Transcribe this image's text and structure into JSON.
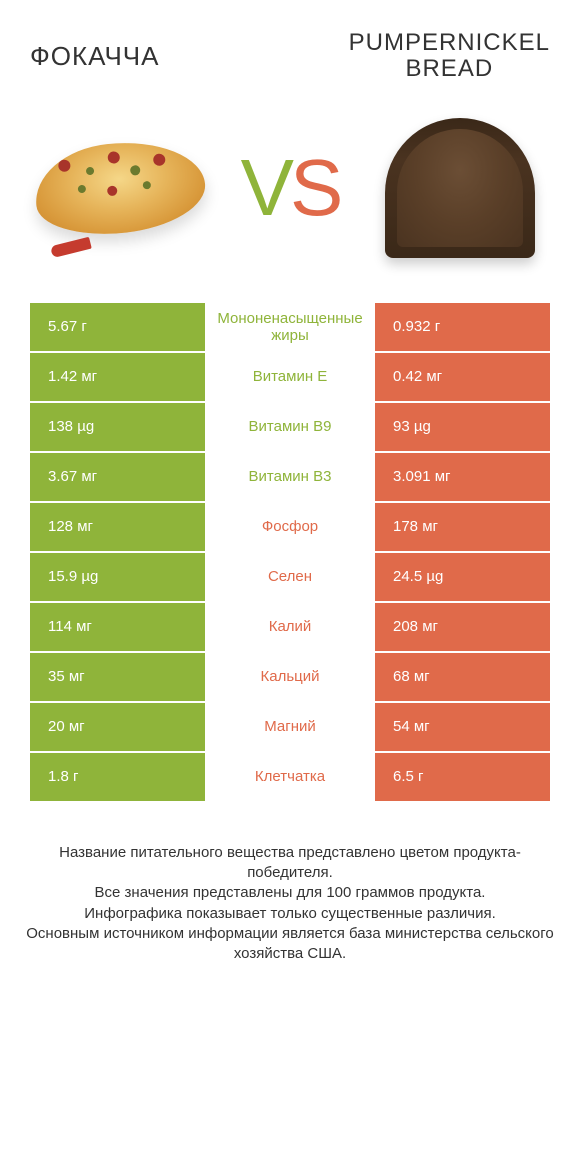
{
  "colors": {
    "green": "#8fb43a",
    "orange": "#e06a4a",
    "text": "#333333",
    "white": "#ffffff"
  },
  "header": {
    "left_title": "ФОКАЧЧА",
    "right_title_line1": "PUMPERNICKEL",
    "right_title_line2": "BREAD"
  },
  "vs": {
    "v": "V",
    "s": "S"
  },
  "table": {
    "left_color": "#8fb43a",
    "right_color": "#e06a4a",
    "rows": [
      {
        "left": "5.67 г",
        "mid": "Мононенасыщенные жиры",
        "right": "0.932 г",
        "winner": "left"
      },
      {
        "left": "1.42 мг",
        "mid": "Витамин E",
        "right": "0.42 мг",
        "winner": "left"
      },
      {
        "left": "138 µg",
        "mid": "Витамин B9",
        "right": "93 µg",
        "winner": "left"
      },
      {
        "left": "3.67 мг",
        "mid": "Витамин B3",
        "right": "3.091 мг",
        "winner": "left"
      },
      {
        "left": "128 мг",
        "mid": "Фосфор",
        "right": "178 мг",
        "winner": "right"
      },
      {
        "left": "15.9 µg",
        "mid": "Селен",
        "right": "24.5 µg",
        "winner": "right"
      },
      {
        "left": "114 мг",
        "mid": "Калий",
        "right": "208 мг",
        "winner": "right"
      },
      {
        "left": "35 мг",
        "mid": "Кальций",
        "right": "68 мг",
        "winner": "right"
      },
      {
        "left": "20 мг",
        "mid": "Магний",
        "right": "54 мг",
        "winner": "right"
      },
      {
        "left": "1.8 г",
        "mid": "Клетчатка",
        "right": "6.5 г",
        "winner": "right"
      }
    ]
  },
  "footer": {
    "line1": "Название питательного вещества представлено цветом продукта-победителя.",
    "line2": "Все значения представлены для 100 граммов продукта.",
    "line3": "Инфографика показывает только существенные различия.",
    "line4": "Основным источником информации является база министерства сельского хозяйства США."
  }
}
